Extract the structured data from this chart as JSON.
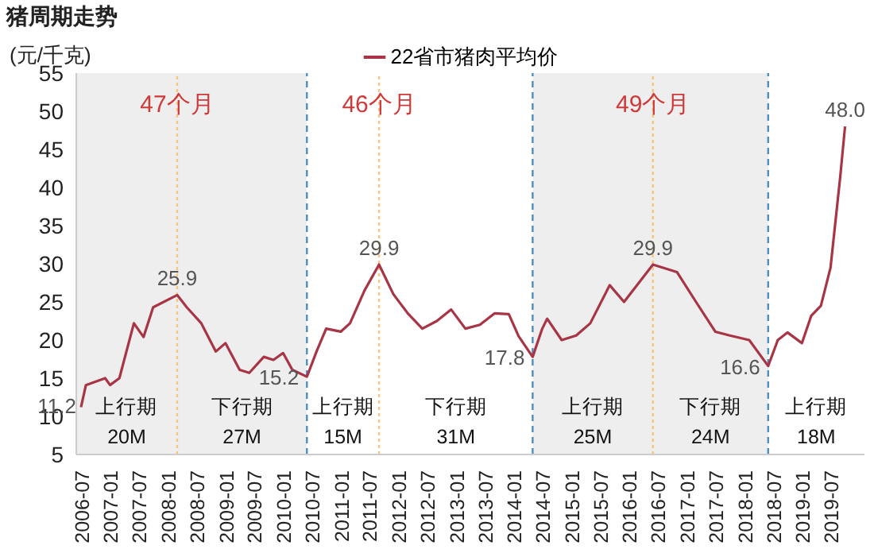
{
  "chart_data": {
    "type": "line",
    "title": "猪周期走势",
    "ylabel": "(元/千克)",
    "legend": "top",
    "x": [
      "2006-07",
      "2006-08",
      "2006-12",
      "2007-01",
      "2007-03",
      "2007-06",
      "2007-08",
      "2007-10",
      "2008-03",
      "2008-05",
      "2008-08",
      "2008-11",
      "2009-01",
      "2009-04",
      "2009-06",
      "2009-09",
      "2009-11",
      "2010-01",
      "2010-03",
      "2010-06",
      "2010-08",
      "2010-10",
      "2011-01",
      "2011-03",
      "2011-06",
      "2011-09",
      "2011-12",
      "2012-03",
      "2012-06",
      "2012-09",
      "2012-12",
      "2013-03",
      "2013-06",
      "2013-09",
      "2013-12",
      "2014-02",
      "2014-05",
      "2014-07",
      "2014-08",
      "2014-11",
      "2015-02",
      "2015-05",
      "2015-09",
      "2015-12",
      "2016-06",
      "2016-11",
      "2017-03",
      "2017-07",
      "2017-10",
      "2018-02",
      "2018-06",
      "2018-08",
      "2018-10",
      "2019-01",
      "2019-03",
      "2019-05",
      "2019-07",
      "2019-09",
      "2019-10"
    ],
    "series": [
      {
        "name": "22省市猪肉平均价",
        "color": "#a83545",
        "values": [
          11.2,
          14.1,
          15,
          14.1,
          15,
          22.2,
          20.4,
          24.3,
          25.9,
          24.3,
          22.2,
          18.5,
          19.6,
          16.1,
          15.7,
          17.8,
          17.4,
          18.3,
          16.1,
          15.2,
          18.5,
          21.5,
          21.1,
          22.2,
          26.5,
          29.9,
          26,
          23.5,
          21.5,
          22.5,
          24,
          21.5,
          22,
          23.5,
          23.4,
          20.5,
          17.8,
          21.5,
          22.8,
          20,
          20.6,
          22.2,
          27.2,
          25,
          29.9,
          28.9,
          25,
          21.1,
          20.6,
          20,
          16.6,
          20,
          21,
          19.6,
          23.2,
          24.5,
          29.5,
          41.5,
          48.0
        ],
        "value_labels": [
          "11.2",
          null,
          null,
          null,
          null,
          null,
          null,
          null,
          "25.9",
          null,
          null,
          null,
          null,
          null,
          null,
          null,
          null,
          null,
          null,
          "15.2",
          null,
          null,
          null,
          null,
          null,
          "29.9",
          null,
          null,
          null,
          null,
          null,
          null,
          null,
          null,
          null,
          null,
          "17.8",
          null,
          null,
          null,
          null,
          null,
          null,
          null,
          "29.9",
          null,
          null,
          null,
          null,
          null,
          "16.6",
          null,
          null,
          null,
          null,
          null,
          null,
          null,
          "48.0"
        ]
      }
    ],
    "xlim": [
      "2006-06",
      "2020-02"
    ],
    "xticks": [
      "2006-07",
      "2007-01",
      "2007-07",
      "2008-01",
      "2008-07",
      "2009-01",
      "2009-07",
      "2010-01",
      "2010-07",
      "2011-01",
      "2011-07",
      "2012-01",
      "2012-07",
      "2013-01",
      "2013-07",
      "2014-01",
      "2014-07",
      "2015-01",
      "2015-07",
      "2016-01",
      "2016-07",
      "2017-01",
      "2017-07",
      "2018-01",
      "2018-07",
      "2019-01",
      "2019-07"
    ],
    "ylim": [
      5,
      55
    ],
    "yticks": [
      5,
      10,
      15,
      20,
      25,
      30,
      35,
      40,
      45,
      50,
      55
    ],
    "grid": false,
    "marker": "none",
    "line_style": "solid",
    "bands": [
      {
        "axis": "x",
        "from": "2006-06",
        "to": "2010-06",
        "color": "#eeeeee"
      },
      {
        "axis": "x",
        "from": "2014-05",
        "to": "2018-06",
        "color": "#eeeeee"
      }
    ],
    "ref_lines": [
      {
        "axis": "x",
        "value": "2010-06",
        "color": "#4f8fc0",
        "line_style": "dashed"
      },
      {
        "axis": "x",
        "value": "2014-05",
        "color": "#4f8fc0",
        "line_style": "dashed"
      },
      {
        "axis": "x",
        "value": "2018-06",
        "color": "#4f8fc0",
        "line_style": "dashed"
      },
      {
        "axis": "x",
        "value": "2008-03",
        "color": "#f5c77e",
        "line_style": "dotted",
        "label": "47个月"
      },
      {
        "axis": "x",
        "value": "2011-09",
        "color": "#f5c77e",
        "line_style": "dotted",
        "label": "46个月"
      },
      {
        "axis": "x",
        "value": "2016-06",
        "color": "#f5c77e",
        "line_style": "dotted",
        "label": "49个月"
      }
    ],
    "annotations": [
      "上行期",
      "20M",
      "下行期",
      "27M",
      "上行期",
      "15M",
      "下行期",
      "31M",
      "上行期",
      "25M",
      "下行期",
      "24M",
      "上行期",
      "18M"
    ]
  }
}
